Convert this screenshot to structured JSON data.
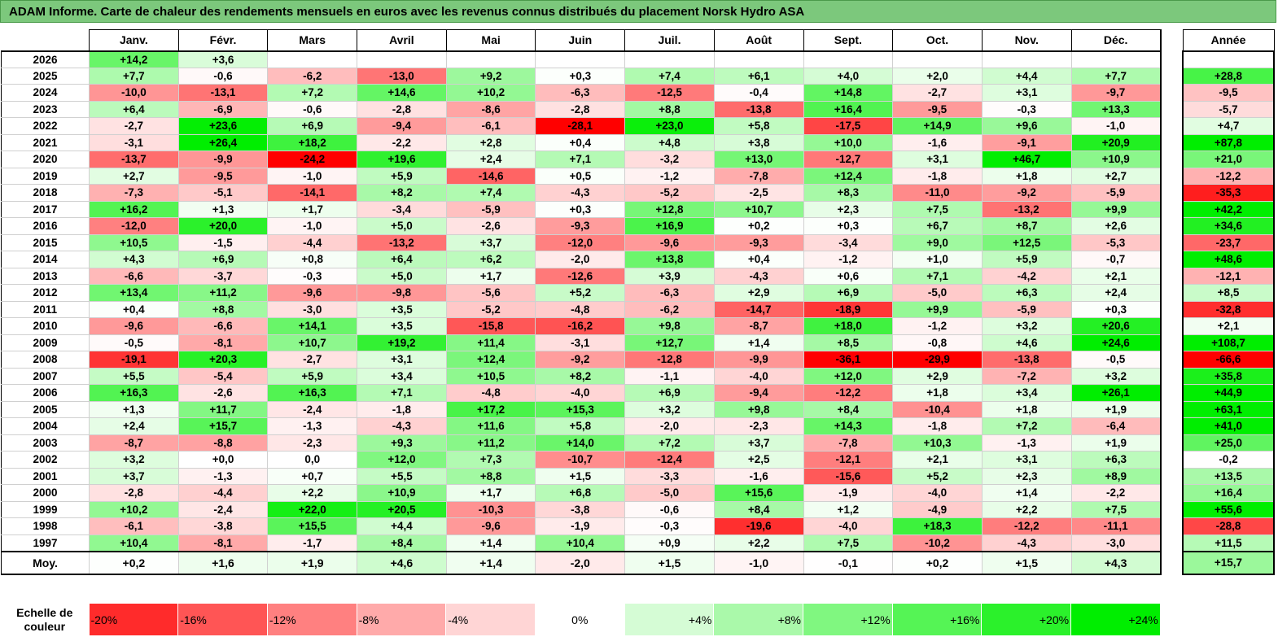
{
  "title": "ADAM Informe. Carte de chaleur des rendements mensuels en euros avec les revenus connus distribués du placement Norsk Hydro ASA",
  "chart_data": {
    "type": "heatmap",
    "months": [
      "Janv.",
      "Févr.",
      "Mars",
      "Avril",
      "Mai",
      "Juin",
      "Juil.",
      "Août",
      "Sept.",
      "Oct.",
      "Nov.",
      "Déc."
    ],
    "year_header": "Année",
    "rows": [
      {
        "year": "2026",
        "values": [
          "+14,2",
          "+3,6",
          "",
          "",
          "",
          "",
          "",
          "",
          "",
          "",
          "",
          ""
        ],
        "annual": ""
      },
      {
        "year": "2025",
        "values": [
          "+7,7",
          "-0,6",
          "-6,2",
          "-13,0",
          "+9,2",
          "+0,3",
          "+7,4",
          "+6,1",
          "+4,0",
          "+2,0",
          "+4,4",
          "+7,7"
        ],
        "annual": "+28,8"
      },
      {
        "year": "2024",
        "values": [
          "-10,0",
          "-13,1",
          "+7,2",
          "+14,6",
          "+10,2",
          "-6,3",
          "-12,5",
          "-0,4",
          "+14,8",
          "-2,7",
          "+3,1",
          "-9,7"
        ],
        "annual": "-9,5"
      },
      {
        "year": "2023",
        "values": [
          "+6,4",
          "-6,9",
          "-0,6",
          "-2,8",
          "-8,6",
          "-2,8",
          "+8,8",
          "-13,8",
          "+16,4",
          "-9,5",
          "-0,3",
          "+13,3"
        ],
        "annual": "-5,7"
      },
      {
        "year": "2022",
        "values": [
          "-2,7",
          "+23,6",
          "+6,9",
          "-9,4",
          "-6,1",
          "-28,1",
          "+23,0",
          "+5,8",
          "-17,5",
          "+14,9",
          "+9,6",
          "-1,0"
        ],
        "annual": "+4,7"
      },
      {
        "year": "2021",
        "values": [
          "-3,1",
          "+26,4",
          "+18,2",
          "-2,2",
          "+2,8",
          "+0,4",
          "+4,8",
          "+3,8",
          "+10,0",
          "-1,6",
          "-9,1",
          "+20,9"
        ],
        "annual": "+87,8"
      },
      {
        "year": "2020",
        "values": [
          "-13,7",
          "-9,9",
          "-24,2",
          "+19,6",
          "+2,4",
          "+7,1",
          "-3,2",
          "+13,0",
          "-12,7",
          "+3,1",
          "+46,7",
          "+10,9"
        ],
        "annual": "+21,0"
      },
      {
        "year": "2019",
        "values": [
          "+2,7",
          "-9,5",
          "-1,0",
          "+5,9",
          "-14,6",
          "+0,5",
          "-1,2",
          "-7,8",
          "+12,4",
          "-1,8",
          "+1,8",
          "+2,7"
        ],
        "annual": "-12,2"
      },
      {
        "year": "2018",
        "values": [
          "-7,3",
          "-5,1",
          "-14,1",
          "+8,2",
          "+7,4",
          "-4,3",
          "-5,2",
          "-2,5",
          "+8,3",
          "-11,0",
          "-9,2",
          "-5,9"
        ],
        "annual": "-35,3"
      },
      {
        "year": "2017",
        "values": [
          "+16,2",
          "+1,3",
          "+1,7",
          "-3,4",
          "-5,9",
          "+0,3",
          "+12,8",
          "+10,7",
          "+2,3",
          "+7,5",
          "-13,2",
          "+9,9"
        ],
        "annual": "+42,2"
      },
      {
        "year": "2016",
        "values": [
          "-12,0",
          "+20,0",
          "-1,0",
          "+5,0",
          "-2,6",
          "-9,3",
          "+16,9",
          "+0,2",
          "+0,3",
          "+6,7",
          "+8,7",
          "+2,6"
        ],
        "annual": "+34,6"
      },
      {
        "year": "2015",
        "values": [
          "+10,5",
          "-1,5",
          "-4,4",
          "-13,2",
          "+3,7",
          "-12,0",
          "-9,6",
          "-9,3",
          "-3,4",
          "+9,0",
          "+12,5",
          "-5,3"
        ],
        "annual": "-23,7"
      },
      {
        "year": "2014",
        "values": [
          "+4,3",
          "+6,9",
          "+0,8",
          "+6,4",
          "+6,2",
          "-2,0",
          "+13,8",
          "+0,4",
          "-1,2",
          "+1,0",
          "+5,9",
          "-0,7"
        ],
        "annual": "+48,6"
      },
      {
        "year": "2013",
        "values": [
          "-6,6",
          "-3,7",
          "-0,3",
          "+5,0",
          "+1,7",
          "-12,6",
          "+3,9",
          "-4,3",
          "+0,6",
          "+7,1",
          "-4,2",
          "+2,1"
        ],
        "annual": "-12,1"
      },
      {
        "year": "2012",
        "values": [
          "+13,4",
          "+11,2",
          "-9,6",
          "-9,8",
          "-5,6",
          "+5,2",
          "-6,3",
          "+2,9",
          "+6,9",
          "-5,0",
          "+6,3",
          "+2,4"
        ],
        "annual": "+8,5"
      },
      {
        "year": "2011",
        "values": [
          "+0,4",
          "+8,8",
          "-3,0",
          "+3,5",
          "-5,2",
          "-4,8",
          "-6,2",
          "-14,7",
          "-18,9",
          "+9,9",
          "-5,9",
          "+0,3"
        ],
        "annual": "-32,8"
      },
      {
        "year": "2010",
        "values": [
          "-9,6",
          "-6,6",
          "+14,1",
          "+3,5",
          "-15,8",
          "-16,2",
          "+9,8",
          "-8,7",
          "+18,0",
          "-1,2",
          "+3,2",
          "+20,6"
        ],
        "annual": "+2,1"
      },
      {
        "year": "2009",
        "values": [
          "-0,5",
          "-8,1",
          "+10,7",
          "+19,2",
          "+11,4",
          "-3,1",
          "+12,7",
          "+1,4",
          "+8,5",
          "-0,8",
          "+4,6",
          "+24,6"
        ],
        "annual": "+108,7"
      },
      {
        "year": "2008",
        "values": [
          "-19,1",
          "+20,3",
          "-2,7",
          "+3,1",
          "+12,4",
          "-9,2",
          "-12,8",
          "-9,9",
          "-36,1",
          "-29,9",
          "-13,8",
          "-0,5"
        ],
        "annual": "-66,6"
      },
      {
        "year": "2007",
        "values": [
          "+5,5",
          "-5,4",
          "+5,9",
          "+3,4",
          "+10,5",
          "+8,2",
          "-1,1",
          "-4,0",
          "+12,0",
          "+2,9",
          "-7,2",
          "+3,2"
        ],
        "annual": "+35,8"
      },
      {
        "year": "2006",
        "values": [
          "+16,3",
          "-2,6",
          "+16,3",
          "+7,1",
          "-4,8",
          "-4,0",
          "+6,9",
          "-9,4",
          "-12,2",
          "+1,8",
          "+3,4",
          "+26,1"
        ],
        "annual": "+44,9"
      },
      {
        "year": "2005",
        "values": [
          "+1,3",
          "+11,7",
          "-2,4",
          "-1,8",
          "+17,2",
          "+15,3",
          "+3,2",
          "+9,8",
          "+8,4",
          "-10,4",
          "+1,8",
          "+1,9"
        ],
        "annual": "+63,1"
      },
      {
        "year": "2004",
        "values": [
          "+2,4",
          "+15,7",
          "-1,3",
          "-4,3",
          "+11,6",
          "+5,8",
          "-2,0",
          "-2,3",
          "+14,3",
          "-1,8",
          "+7,2",
          "-6,4"
        ],
        "annual": "+41,0"
      },
      {
        "year": "2003",
        "values": [
          "-8,7",
          "-8,8",
          "-2,3",
          "+9,3",
          "+11,2",
          "+14,0",
          "+7,2",
          "+3,7",
          "-7,8",
          "+10,3",
          "-1,3",
          "+1,9"
        ],
        "annual": "+25,0"
      },
      {
        "year": "2002",
        "values": [
          "+3,2",
          "+0,0",
          "0,0",
          "+12,0",
          "+7,3",
          "-10,7",
          "-12,4",
          "+2,5",
          "-12,1",
          "+2,1",
          "+3,1",
          "+6,3"
        ],
        "annual": "-0,2"
      },
      {
        "year": "2001",
        "values": [
          "+3,7",
          "-1,3",
          "+0,7",
          "+5,5",
          "+8,8",
          "+1,5",
          "-3,3",
          "-1,6",
          "-15,6",
          "+5,2",
          "+2,3",
          "+8,9"
        ],
        "annual": "+13,5"
      },
      {
        "year": "2000",
        "values": [
          "-2,8",
          "-4,4",
          "+2,2",
          "+10,9",
          "+1,7",
          "+6,8",
          "-5,0",
          "+15,6",
          "-1,9",
          "-4,0",
          "+1,4",
          "-2,2"
        ],
        "annual": "+16,4"
      },
      {
        "year": "1999",
        "values": [
          "+10,2",
          "-2,4",
          "+22,0",
          "+20,5",
          "-10,3",
          "-3,8",
          "-0,6",
          "+8,4",
          "+1,2",
          "-4,9",
          "+2,2",
          "+7,5"
        ],
        "annual": "+55,6"
      },
      {
        "year": "1998",
        "values": [
          "-6,1",
          "-3,8",
          "+15,5",
          "+4,4",
          "-9,6",
          "-1,9",
          "-0,3",
          "-19,6",
          "-4,0",
          "+18,3",
          "-12,2",
          "-11,1"
        ],
        "annual": "-28,8"
      },
      {
        "year": "1997",
        "values": [
          "+10,4",
          "-8,1",
          "-1,7",
          "+8,4",
          "+1,4",
          "+10,4",
          "+0,9",
          "+2,2",
          "+7,5",
          "-10,2",
          "-4,3",
          "-3,0"
        ],
        "annual": "+11,5"
      }
    ],
    "average": {
      "label": "Moy.",
      "values": [
        "+0,2",
        "+1,6",
        "+1,9",
        "+4,6",
        "+1,4",
        "-2,0",
        "+1,5",
        "-1,0",
        "-0,1",
        "+0,2",
        "+1,5",
        "+4,3"
      ],
      "annual": "+15,7"
    },
    "scale": {
      "label": "Echelle de couleur",
      "stops": [
        {
          "label": "-20%",
          "value": -20
        },
        {
          "label": "-16%",
          "value": -16
        },
        {
          "label": "-12%",
          "value": -12
        },
        {
          "label": "-8%",
          "value": -8
        },
        {
          "label": "-4%",
          "value": -4
        },
        {
          "label": "0%",
          "value": 0
        },
        {
          "label": "+4%",
          "value": 4
        },
        {
          "label": "+8%",
          "value": 8
        },
        {
          "label": "+12%",
          "value": 12
        },
        {
          "label": "+16%",
          "value": 16
        },
        {
          "label": "+20%",
          "value": 20
        },
        {
          "label": "+24%",
          "value": 24
        }
      ]
    },
    "colors": {
      "negative": "#ff0000",
      "neutral": "#ffffff",
      "positive": "#00ee00",
      "title_bg": "#7cc87c"
    }
  }
}
